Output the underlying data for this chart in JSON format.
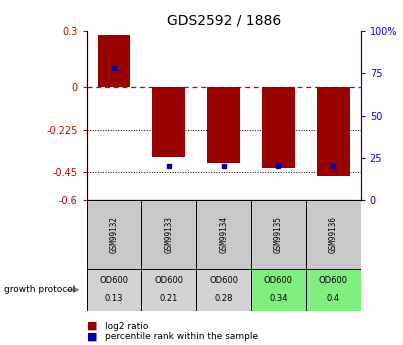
{
  "title": "GDS2592 / 1886",
  "samples": [
    "GSM99132",
    "GSM99133",
    "GSM99134",
    "GSM99135",
    "GSM99136"
  ],
  "log2_ratio": [
    0.28,
    -0.37,
    -0.4,
    -0.43,
    -0.47
  ],
  "percentile_rank": [
    78,
    20,
    20,
    20,
    20
  ],
  "protocol_label": "OD600",
  "protocol_values": [
    "0.13",
    "0.21",
    "0.28",
    "0.34",
    "0.4"
  ],
  "sample_cell_color": "#c8c8c8",
  "cell_colors": [
    "#d3d3d3",
    "#d3d3d3",
    "#d3d3d3",
    "#80ee80",
    "#80ee80"
  ],
  "ylim": [
    -0.6,
    0.3
  ],
  "y_ticks_left": [
    0.3,
    0.0,
    -0.225,
    -0.45,
    -0.6
  ],
  "y_ticks_left_labels": [
    "0.3",
    "0",
    "-0.225",
    "-0.45",
    "-0.6"
  ],
  "y_ticks_right": [
    100,
    75,
    50,
    25,
    0
  ],
  "y_ticks_right_labels": [
    "100%",
    "75",
    "50",
    "25",
    "0"
  ],
  "hline_dotted": [
    -0.225,
    -0.45
  ],
  "bar_color": "#990000",
  "dot_color": "#0000aa",
  "background_color": "#ffffff",
  "legend_red_label": "log2 ratio",
  "legend_blue_label": "percentile rank within the sample",
  "growth_protocol_label": "growth protocol"
}
